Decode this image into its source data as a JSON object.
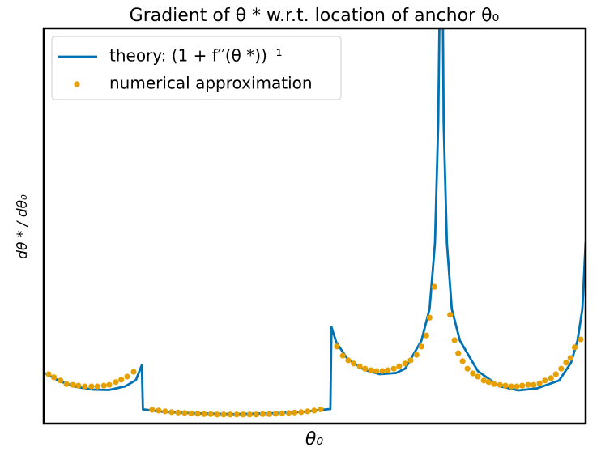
{
  "chart_data": {
    "type": "line",
    "title": "Gradient of θ *  w.r.t. location of anchor θ₀",
    "x_label": "θ₀",
    "y_label": "dθ * / dθ₀",
    "xlim": [
      0,
      100
    ],
    "ylim": [
      0,
      100
    ],
    "grid": false,
    "legend": "upper left",
    "series": [
      {
        "name": "theory: (1 + f′′(θ *))⁻¹",
        "type": "line",
        "color": "#0072b2",
        "x": [
          0,
          3,
          6,
          9,
          12,
          15,
          17,
          18.1,
          18.3,
          22,
          28,
          35,
          42,
          48,
          52.9,
          53.1,
          54,
          56,
          59,
          62,
          65,
          66.7,
          69.7,
          71.2,
          72.2,
          72.8,
          73.1,
          73.4,
          73.8,
          74.4,
          75.3,
          76.8,
          80.1,
          84,
          87.6,
          91,
          95.1,
          97.3,
          98.5,
          99.4,
          100
        ],
        "values": [
          12.9,
          10.7,
          9.3,
          8.6,
          8.5,
          9.4,
          11.0,
          14.8,
          3.6,
          3.0,
          2.6,
          2.4,
          2.6,
          3.0,
          3.7,
          24.4,
          20.5,
          16.5,
          13.7,
          12.5,
          12.8,
          13.9,
          21,
          29,
          45.7,
          76,
          110,
          150,
          76,
          45.7,
          29,
          21,
          13.3,
          9.5,
          8.4,
          8.9,
          10.9,
          15.4,
          21,
          29,
          46
        ]
      },
      {
        "name": "numerical approximation",
        "type": "scatter",
        "color": "#e69f00",
        "x": [
          0.9,
          1.9,
          3.1,
          4.2,
          5.4,
          6.4,
          7.6,
          8.8,
          9.9,
          11.1,
          12.1,
          13.3,
          14.3,
          15.4,
          16.6,
          20.0,
          21.2,
          22.4,
          23.6,
          24.8,
          26.0,
          27.2,
          28.4,
          29.6,
          30.8,
          32.0,
          33.2,
          34.4,
          35.6,
          36.8,
          38.0,
          39.2,
          40.4,
          41.6,
          42.8,
          44.0,
          45.2,
          46.3,
          47.5,
          48.7,
          49.9,
          51.1,
          54.1,
          55.2,
          56.2,
          57.2,
          58.3,
          59.3,
          60.4,
          61.4,
          62.5,
          63.5,
          64.6,
          65.6,
          66.7,
          67.7,
          68.8,
          69.7,
          70.6,
          71.2,
          72.1,
          75.0,
          75.8,
          76.5,
          77.3,
          78.2,
          79.2,
          80.1,
          81.2,
          82.1,
          83.1,
          84.2,
          85.2,
          86.3,
          87.3,
          88.3,
          89.4,
          90.4,
          91.5,
          92.5,
          93.6,
          94.5,
          95.5,
          96.4,
          97.2,
          98.0,
          99.1
        ],
        "values": [
          12.5,
          11.7,
          10.9,
          10.0,
          9.8,
          9.6,
          9.4,
          9.4,
          9.4,
          9.6,
          9.8,
          10.5,
          11.1,
          11.9,
          13.1,
          3.5,
          3.3,
          3.1,
          2.9,
          2.8,
          2.7,
          2.6,
          2.5,
          2.4,
          2.4,
          2.3,
          2.3,
          2.3,
          2.3,
          2.3,
          2.3,
          2.3,
          2.4,
          2.4,
          2.5,
          2.6,
          2.7,
          2.8,
          2.9,
          3.1,
          3.3,
          3.6,
          19.5,
          17.2,
          16.0,
          15.2,
          14.5,
          13.9,
          13.5,
          13.3,
          13.3,
          13.5,
          13.9,
          14.5,
          15.2,
          16.0,
          17.4,
          19.5,
          22.3,
          26.8,
          34.6,
          27.5,
          21.1,
          17.8,
          15.8,
          13.9,
          12.7,
          11.9,
          10.9,
          10.5,
          10.0,
          9.8,
          9.6,
          9.4,
          9.4,
          9.6,
          9.8,
          9.8,
          10.2,
          10.9,
          11.5,
          12.5,
          13.9,
          15.4,
          16.6,
          19.3,
          21.3
        ]
      }
    ]
  }
}
